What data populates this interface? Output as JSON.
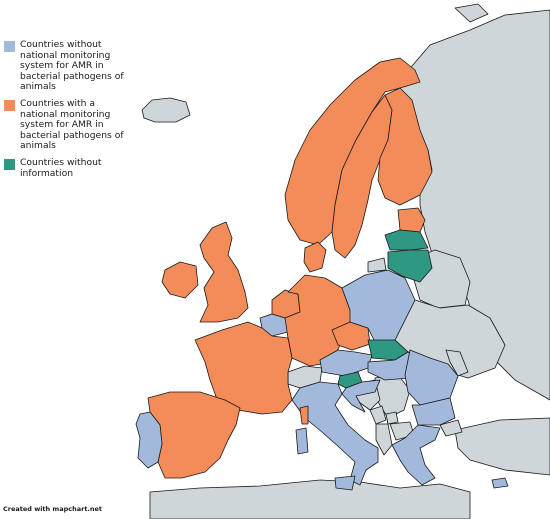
{
  "colors": {
    "background": "#ffffff",
    "border": "#1a1a1a",
    "without_system": "#a3b9dc",
    "with_system": "#f48c5a",
    "without_information": "#2e9883",
    "non_eu": "#cfd6d9"
  },
  "legend": {
    "items": [
      {
        "label": "Countries without national monitoring system for AMR in bacterial pathogens of animals",
        "color": "#a3b9dc",
        "category": "without_system"
      },
      {
        "label": "Countries with a national monitoring system for AMR in bacterial pathogens of animals",
        "color": "#f48c5a",
        "category": "with_system"
      },
      {
        "label": "Countries without information",
        "color": "#2e9883",
        "category": "without_information"
      }
    ]
  },
  "credit": "Created with mapchart.net",
  "countries": {
    "iceland": "non_eu",
    "norway": "with_system",
    "sweden": "with_system",
    "finland": "with_system",
    "denmark": "with_system",
    "estonia": "with_system",
    "latvia": "without_information",
    "lithuania": "without_information",
    "ireland": "with_system",
    "united_kingdom": "with_system",
    "netherlands": "with_system",
    "belgium": "without_system",
    "france": "with_system",
    "germany": "with_system",
    "czechia": "with_system",
    "poland": "without_system",
    "austria": "without_system",
    "slovakia": "without_information",
    "hungary": "without_system",
    "slovenia": "without_information",
    "croatia": "without_system",
    "switzerland": "non_eu",
    "italy": "without_system",
    "spain": "with_system",
    "portugal": "without_system",
    "romania": "without_system",
    "bulgaria": "without_system",
    "greece": "without_system",
    "cyprus": "without_system",
    "russia": "non_eu",
    "belarus": "non_eu",
    "ukraine": "non_eu",
    "moldova": "non_eu",
    "serbia": "non_eu",
    "bosnia": "non_eu",
    "montenegro": "non_eu",
    "albania": "non_eu",
    "north_macedonia": "non_eu",
    "turkey": "non_eu",
    "north_africa": "non_eu",
    "kosovo": "non_eu"
  }
}
